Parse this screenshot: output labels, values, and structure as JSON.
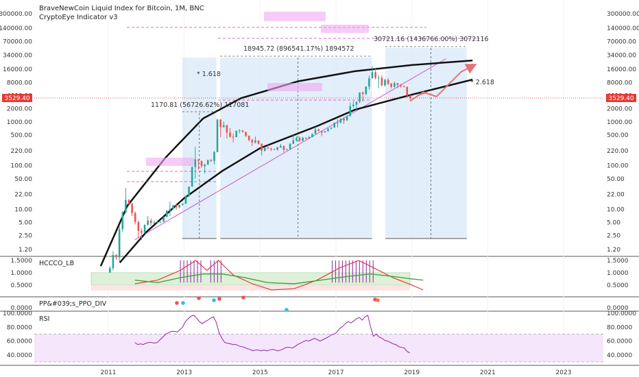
{
  "chart_data": [
    {
      "type": "candlestick",
      "title": "BraveNewCoin Liquid Index for Bitcoin, 1M, BNC",
      "subtitle": "CryptoEye Indicator v3",
      "y_scale": "log",
      "y_ticks": [
        "300000.00",
        "140000.00",
        "70000.00",
        "34000.00",
        "16000.00",
        "8000.00",
        "4000.00",
        "2000.00",
        "1000.00",
        "500.00",
        "220.00",
        "100.00",
        "50.00",
        "22.00",
        "10.00",
        "5.00",
        "2.50",
        "1.20"
      ],
      "x_ticks": [
        "2011",
        "2013",
        "2015",
        "2017",
        "2019",
        "2021",
        "2023"
      ],
      "current_price": "3529.40",
      "candles": [
        {
          "t": "2011-01",
          "o": 0.3,
          "h": 0.5,
          "l": 0.3,
          "c": 0.45
        },
        {
          "t": "2011-02",
          "o": 0.45,
          "h": 1.1,
          "l": 0.4,
          "c": 0.9
        },
        {
          "t": "2011-03",
          "o": 0.9,
          "h": 0.95,
          "l": 0.7,
          "c": 0.8
        },
        {
          "t": "2011-04",
          "o": 0.8,
          "h": 4.0,
          "l": 0.6,
          "c": 3.5
        },
        {
          "t": "2011-05",
          "o": 3.5,
          "h": 9.0,
          "l": 3.0,
          "c": 8.5
        },
        {
          "t": "2011-06",
          "o": 8.5,
          "h": 31.0,
          "l": 8.0,
          "c": 16.5
        },
        {
          "t": "2011-07",
          "o": 16.5,
          "h": 17.0,
          "l": 12.0,
          "c": 13.5
        },
        {
          "t": "2011-08",
          "o": 13.5,
          "h": 14.0,
          "l": 7.0,
          "c": 8.2
        },
        {
          "t": "2011-09",
          "o": 8.2,
          "h": 9.0,
          "l": 4.5,
          "c": 5.1
        },
        {
          "t": "2011-10",
          "o": 5.1,
          "h": 5.5,
          "l": 2.2,
          "c": 3.2
        },
        {
          "t": "2011-11",
          "o": 3.2,
          "h": 3.6,
          "l": 2.0,
          "c": 2.9
        },
        {
          "t": "2011-12",
          "o": 2.9,
          "h": 4.5,
          "l": 2.8,
          "c": 4.4
        },
        {
          "t": "2012-01",
          "o": 4.4,
          "h": 7.0,
          "l": 4.2,
          "c": 5.5
        },
        {
          "t": "2012-02",
          "o": 5.5,
          "h": 6.2,
          "l": 4.2,
          "c": 4.9
        },
        {
          "t": "2012-03",
          "o": 4.9,
          "h": 5.5,
          "l": 4.6,
          "c": 4.9
        },
        {
          "t": "2012-04",
          "o": 4.9,
          "h": 5.3,
          "l": 4.7,
          "c": 5.0
        },
        {
          "t": "2012-05",
          "o": 5.0,
          "h": 5.3,
          "l": 4.9,
          "c": 5.15
        },
        {
          "t": "2012-06",
          "o": 5.15,
          "h": 6.8,
          "l": 5.1,
          "c": 6.7
        },
        {
          "t": "2012-07",
          "o": 6.7,
          "h": 9.5,
          "l": 6.5,
          "c": 9.3
        },
        {
          "t": "2012-08",
          "o": 9.3,
          "h": 15.0,
          "l": 7.0,
          "c": 10.2
        },
        {
          "t": "2012-09",
          "o": 10.2,
          "h": 12.5,
          "l": 9.9,
          "c": 12.4
        },
        {
          "t": "2012-10",
          "o": 12.4,
          "h": 12.9,
          "l": 9.8,
          "c": 11.1
        },
        {
          "t": "2012-11",
          "o": 11.1,
          "h": 12.8,
          "l": 10.5,
          "c": 12.6
        },
        {
          "t": "2012-12",
          "o": 12.6,
          "h": 13.7,
          "l": 12.2,
          "c": 13.4
        },
        {
          "t": "2013-01",
          "o": 13.4,
          "h": 20.5,
          "l": 13.2,
          "c": 20.4
        },
        {
          "t": "2013-02",
          "o": 20.4,
          "h": 33.0,
          "l": 19.5,
          "c": 33.0
        },
        {
          "t": "2013-03",
          "o": 33.0,
          "h": 95.0,
          "l": 33.0,
          "c": 93.0
        },
        {
          "t": "2013-04",
          "o": 93.0,
          "h": 266.0,
          "l": 50.0,
          "c": 139.0
        },
        {
          "t": "2013-05",
          "o": 139.0,
          "h": 139.0,
          "l": 80.0,
          "c": 129.0
        },
        {
          "t": "2013-06",
          "o": 129.0,
          "h": 129.0,
          "l": 89.0,
          "c": 97.0
        },
        {
          "t": "2013-07",
          "o": 97.0,
          "h": 110.0,
          "l": 66.0,
          "c": 106.0
        },
        {
          "t": "2013-08",
          "o": 106.0,
          "h": 135.0,
          "l": 102.0,
          "c": 135.0
        },
        {
          "t": "2013-09",
          "o": 135.0,
          "h": 140.0,
          "l": 120.0,
          "c": 128.0
        },
        {
          "t": "2013-10",
          "o": 128.0,
          "h": 215.0,
          "l": 105.0,
          "c": 205.0
        },
        {
          "t": "2013-11",
          "o": 205.0,
          "h": 1170.81,
          "l": 200.0,
          "c": 1130.0
        },
        {
          "t": "2013-12",
          "o": 1130.0,
          "h": 1170.0,
          "l": 450.0,
          "c": 760.0
        },
        {
          "t": "2014-01",
          "o": 760.0,
          "h": 1020.0,
          "l": 740.0,
          "c": 850.0
        },
        {
          "t": "2014-02",
          "o": 850.0,
          "h": 860.0,
          "l": 420.0,
          "c": 570.0
        },
        {
          "t": "2014-03",
          "o": 570.0,
          "h": 720.0,
          "l": 440.0,
          "c": 460.0
        },
        {
          "t": "2014-04",
          "o": 460.0,
          "h": 540.0,
          "l": 340.0,
          "c": 450.0
        },
        {
          "t": "2014-05",
          "o": 450.0,
          "h": 630.0,
          "l": 440.0,
          "c": 630.0
        },
        {
          "t": "2014-06",
          "o": 630.0,
          "h": 680.0,
          "l": 550.0,
          "c": 640.0
        },
        {
          "t": "2014-07",
          "o": 640.0,
          "h": 650.0,
          "l": 570.0,
          "c": 590.0
        },
        {
          "t": "2014-08",
          "o": 590.0,
          "h": 600.0,
          "l": 450.0,
          "c": 480.0
        },
        {
          "t": "2014-09",
          "o": 480.0,
          "h": 490.0,
          "l": 360.0,
          "c": 385.0
        },
        {
          "t": "2014-10",
          "o": 385.0,
          "h": 410.0,
          "l": 280.0,
          "c": 338.0
        },
        {
          "t": "2014-11",
          "o": 338.0,
          "h": 460.0,
          "l": 320.0,
          "c": 375.0
        },
        {
          "t": "2014-12",
          "o": 375.0,
          "h": 380.0,
          "l": 300.0,
          "c": 317.0
        },
        {
          "t": "2015-01",
          "o": 317.0,
          "h": 318.0,
          "l": 170.0,
          "c": 218.0
        },
        {
          "t": "2015-02",
          "o": 218.0,
          "h": 265.0,
          "l": 210.0,
          "c": 254.0
        },
        {
          "t": "2015-03",
          "o": 254.0,
          "h": 300.0,
          "l": 240.0,
          "c": 244.0
        },
        {
          "t": "2015-04",
          "o": 244.0,
          "h": 260.0,
          "l": 216.0,
          "c": 236.0
        },
        {
          "t": "2015-05",
          "o": 236.0,
          "h": 247.0,
          "l": 227.0,
          "c": 230.0
        },
        {
          "t": "2015-06",
          "o": 230.0,
          "h": 268.0,
          "l": 220.0,
          "c": 263.0
        },
        {
          "t": "2015-07",
          "o": 263.0,
          "h": 315.0,
          "l": 253.0,
          "c": 284.0
        },
        {
          "t": "2015-08",
          "o": 284.0,
          "h": 285.0,
          "l": 200.0,
          "c": 230.0
        },
        {
          "t": "2015-09",
          "o": 230.0,
          "h": 245.0,
          "l": 225.0,
          "c": 236.0
        },
        {
          "t": "2015-10",
          "o": 236.0,
          "h": 330.0,
          "l": 235.0,
          "c": 314.0
        },
        {
          "t": "2015-11",
          "o": 314.0,
          "h": 500.0,
          "l": 310.0,
          "c": 378.0
        },
        {
          "t": "2015-12",
          "o": 378.0,
          "h": 465.0,
          "l": 350.0,
          "c": 431.0
        },
        {
          "t": "2016-01",
          "o": 431.0,
          "h": 465.0,
          "l": 350.0,
          "c": 368.0
        },
        {
          "t": "2016-02",
          "o": 368.0,
          "h": 445.0,
          "l": 360.0,
          "c": 437.0
        },
        {
          "t": "2016-03",
          "o": 437.0,
          "h": 440.0,
          "l": 400.0,
          "c": 416.0
        },
        {
          "t": "2016-04",
          "o": 416.0,
          "h": 470.0,
          "l": 410.0,
          "c": 448.0
        },
        {
          "t": "2016-05",
          "o": 448.0,
          "h": 545.0,
          "l": 440.0,
          "c": 531.0
        },
        {
          "t": "2016-06",
          "o": 531.0,
          "h": 780.0,
          "l": 530.0,
          "c": 673.0
        },
        {
          "t": "2016-07",
          "o": 673.0,
          "h": 700.0,
          "l": 600.0,
          "c": 624.0
        },
        {
          "t": "2016-08",
          "o": 624.0,
          "h": 625.0,
          "l": 470.0,
          "c": 573.0
        },
        {
          "t": "2016-09",
          "o": 573.0,
          "h": 620.0,
          "l": 570.0,
          "c": 609.0
        },
        {
          "t": "2016-10",
          "o": 609.0,
          "h": 720.0,
          "l": 605.0,
          "c": 700.0
        },
        {
          "t": "2016-11",
          "o": 700.0,
          "h": 760.0,
          "l": 680.0,
          "c": 742.0
        },
        {
          "t": "2016-12",
          "o": 742.0,
          "h": 970.0,
          "l": 740.0,
          "c": 963.0
        },
        {
          "t": "2017-01",
          "o": 963.0,
          "h": 1150.0,
          "l": 750.0,
          "c": 970.0
        },
        {
          "t": "2017-02",
          "o": 970.0,
          "h": 1200.0,
          "l": 920.0,
          "c": 1190.0
        },
        {
          "t": "2017-03",
          "o": 1190.0,
          "h": 1300.0,
          "l": 900.0,
          "c": 1080.0
        },
        {
          "t": "2017-04",
          "o": 1080.0,
          "h": 1400.0,
          "l": 1070.0,
          "c": 1350.0
        },
        {
          "t": "2017-05",
          "o": 1350.0,
          "h": 2800.0,
          "l": 1350.0,
          "c": 2300.0
        },
        {
          "t": "2017-06",
          "o": 2300.0,
          "h": 3000.0,
          "l": 2100.0,
          "c": 2480.0
        },
        {
          "t": "2017-07",
          "o": 2480.0,
          "h": 2950.0,
          "l": 1850.0,
          "c": 2880.0
        },
        {
          "t": "2017-08",
          "o": 2880.0,
          "h": 4750.0,
          "l": 2700.0,
          "c": 4700.0
        },
        {
          "t": "2017-09",
          "o": 4700.0,
          "h": 5000.0,
          "l": 2950.0,
          "c": 4340.0
        },
        {
          "t": "2017-10",
          "o": 4340.0,
          "h": 6450.0,
          "l": 4100.0,
          "c": 6450.0
        },
        {
          "t": "2017-11",
          "o": 6450.0,
          "h": 11500.0,
          "l": 5500.0,
          "c": 10000.0
        },
        {
          "t": "2017-12",
          "o": 10000.0,
          "h": 18945.72,
          "l": 10000.0,
          "c": 13800.0
        },
        {
          "t": "2018-01",
          "o": 13800.0,
          "h": 17200.0,
          "l": 9400.0,
          "c": 10200.0
        },
        {
          "t": "2018-02",
          "o": 10200.0,
          "h": 11800.0,
          "l": 5900.0,
          "c": 10300.0
        },
        {
          "t": "2018-03",
          "o": 10300.0,
          "h": 11700.0,
          "l": 6500.0,
          "c": 6900.0
        },
        {
          "t": "2018-04",
          "o": 6900.0,
          "h": 9700.0,
          "l": 6450.0,
          "c": 9200.0
        },
        {
          "t": "2018-05",
          "o": 9200.0,
          "h": 9950.0,
          "l": 7000.0,
          "c": 7500.0
        },
        {
          "t": "2018-06",
          "o": 7500.0,
          "h": 7750.0,
          "l": 5800.0,
          "c": 6350.0
        },
        {
          "t": "2018-07",
          "o": 6350.0,
          "h": 8450.0,
          "l": 6100.0,
          "c": 7750.0
        },
        {
          "t": "2018-08",
          "o": 7750.0,
          "h": 7800.0,
          "l": 5900.0,
          "c": 7000.0
        },
        {
          "t": "2018-09",
          "o": 7000.0,
          "h": 7400.0,
          "l": 6100.0,
          "c": 6600.0
        },
        {
          "t": "2018-10",
          "o": 6600.0,
          "h": 6800.0,
          "l": 6200.0,
          "c": 6300.0
        },
        {
          "t": "2018-11",
          "o": 6300.0,
          "h": 6500.0,
          "l": 3600.0,
          "c": 4000.0
        },
        {
          "t": "2018-12",
          "o": 4000.0,
          "h": 4200.0,
          "l": 3200.0,
          "c": 3529.4
        }
      ],
      "annotations": {
        "measure_2013": "1170.81 (56726.62%) 117081",
        "measure_2017": "18945.72 (896541.17%) 1894572",
        "measure_proj": "30721.16 (1436766.00%) 3072116",
        "fib_1618": "* 1.618",
        "fib_2618": "* 2.618"
      }
    },
    {
      "type": "line",
      "title": "HCCCO_LB",
      "y_ticks": [
        "1.5000",
        "1.0000",
        "0.5000"
      ],
      "series_colors": {
        "fast": "#e53935",
        "slow": "#43a047",
        "bars": "#8e24aa"
      }
    },
    {
      "type": "scatter",
      "title": "PP&#039;s_PPO_DIV",
      "y_ticks": [
        "0.0000"
      ]
    },
    {
      "type": "line",
      "title": "RSI",
      "y_ticks": [
        "100.0000",
        "80.0000",
        "60.0000",
        "40.0000"
      ],
      "upper": 70,
      "lower": 30,
      "series": [
        {
          "name": "RSI",
          "values": [
            58,
            55,
            56,
            55,
            57,
            58,
            58,
            57,
            58,
            62,
            66,
            70,
            72,
            74,
            74,
            73,
            76,
            80,
            88,
            92,
            96,
            97,
            93,
            88,
            85,
            88,
            90,
            93,
            95,
            87,
            72,
            64,
            58,
            57,
            56,
            55,
            55,
            53,
            52,
            51,
            49,
            48,
            46,
            47,
            47,
            46,
            47,
            46,
            47,
            48,
            47,
            46,
            47,
            49,
            51,
            51,
            50,
            52,
            55,
            57,
            59,
            61,
            60,
            62,
            64,
            62,
            60,
            62,
            64,
            66,
            69,
            70,
            73,
            78,
            81,
            85,
            88,
            86,
            89,
            92,
            94,
            90,
            95,
            97,
            80,
            67,
            70,
            66,
            64,
            61,
            60,
            58,
            56,
            55,
            52,
            51,
            50,
            45,
            43
          ]
        }
      ]
    }
  ],
  "colors": {
    "up": "#26a69a",
    "down": "#ef5350",
    "price_badge": "#e53935",
    "shade": "#cfe3f7",
    "label_pink": "#f0a8f0"
  }
}
